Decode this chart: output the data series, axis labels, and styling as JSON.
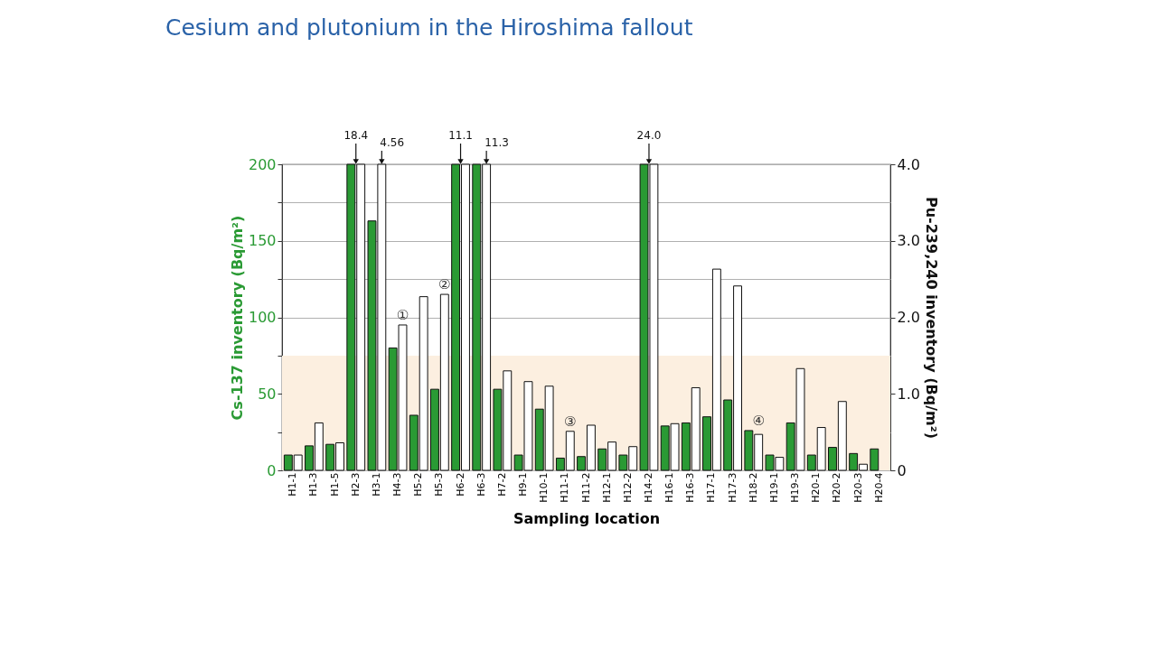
{
  "chart_data": {
    "type": "bar",
    "title": "Cesium and plutonium in the Hiroshima fallout",
    "xlabel": "Sampling location",
    "ylabel": "Cs-137 inventory (Bq/m²)",
    "y2label": "Pu-239,240 inventory (Bq/m²)",
    "categories": [
      "H1-1",
      "H1-3",
      "H1-5",
      "H2-3",
      "H3-1",
      "H4-3",
      "H5-2",
      "H5-3",
      "H6-2",
      "H6-3",
      "H7-2",
      "H9-1",
      "H10-1",
      "H11-1",
      "H11-2",
      "H12-1",
      "H12-2",
      "H14-2",
      "H16-1",
      "H16-3",
      "H17-1",
      "H17-3",
      "H18-2",
      "H19-1",
      "H19-3",
      "H20-1",
      "H20-2",
      "H20-3",
      "H20-4"
    ],
    "series": [
      {
        "color": "#2a9a34",
        "values": [
          10,
          16,
          17,
          200,
          163,
          80,
          36,
          53,
          200,
          200,
          53,
          10,
          40,
          8,
          9,
          14,
          10,
          200,
          29,
          31,
          35,
          46,
          26,
          10,
          31,
          10,
          15,
          11,
          14
        ]
      },
      {
        "color": "#ffffff",
        "axis": "y2",
        "values": [
          0.2,
          0.62,
          0.36,
          4.0,
          4.0,
          1.9,
          2.27,
          2.3,
          4.0,
          4.0,
          1.3,
          1.16,
          1.1,
          0.51,
          0.59,
          0.37,
          0.31,
          4.0,
          0.61,
          1.08,
          2.63,
          2.41,
          0.47,
          0.17,
          1.33,
          0.56,
          0.9,
          0.08,
          null
        ]
      }
    ],
    "ylim": [
      0,
      200
    ],
    "yticks": [
      0,
      {
        "value": 25,
        "label": null
      },
      50,
      {
        "value": 75,
        "label": null
      },
      100,
      {
        "value": 125,
        "label": null
      },
      150,
      {
        "value": 175,
        "label": null
      },
      200
    ],
    "y2lim": [
      0,
      4
    ],
    "y2ticks": [
      0,
      {
        "value": 1,
        "label": "1.0"
      },
      {
        "value": 2,
        "label": "2.0"
      },
      {
        "value": 3,
        "label": "3.0"
      },
      {
        "value": 4,
        "label": "4.0"
      }
    ],
    "grid": "y",
    "bands": [
      {
        "axis": "y",
        "from": 0,
        "to": 75,
        "color": "#fcefe0"
      }
    ],
    "annotations": [
      {
        "text": "18.4",
        "x": "H2-3",
        "y": 200
      },
      {
        "text": "4.56",
        "x": "H3-1",
        "y": 200
      },
      {
        "text": "11.1",
        "x": "H6-2",
        "y": 200
      },
      {
        "text": "11.3",
        "x": "H6-3",
        "y": 200
      },
      {
        "text": "24.0",
        "x": "H14-2",
        "y": 200
      },
      {
        "text": "①",
        "x": "H4-3",
        "y": 95
      },
      {
        "text": "②",
        "x": "H5-3",
        "y": 115
      },
      {
        "text": "③",
        "x": "H11-1",
        "y": 25.5
      },
      {
        "text": "④",
        "x": "H18-2",
        "y": 26
      }
    ]
  }
}
